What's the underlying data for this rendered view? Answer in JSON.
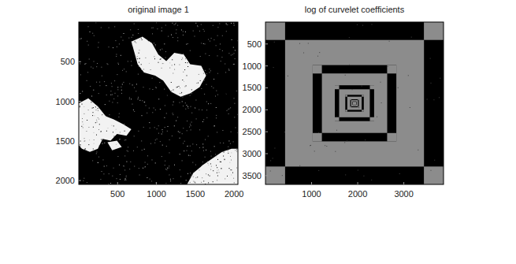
{
  "chart_data": [
    {
      "type": "image",
      "title": "original image 1",
      "xlim": [
        0.5,
        2048.5
      ],
      "ylim": [
        0.5,
        2048.5
      ],
      "xticks": [
        500,
        1000,
        1500,
        2000
      ],
      "yticks": [
        500,
        1000,
        1500,
        2000
      ]
    },
    {
      "type": "image",
      "title": "log of curvelet coefficients",
      "xlim": [
        0.5,
        3860.5
      ],
      "ylim": [
        0.5,
        3700.5
      ],
      "xticks": [
        1000,
        2000,
        3000
      ],
      "yticks": [
        500,
        1000,
        1500,
        2000,
        2500,
        3000,
        3500
      ]
    }
  ]
}
